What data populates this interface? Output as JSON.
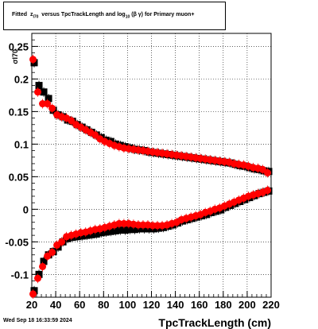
{
  "header": {
    "title_prefix": "Fitted",
    "title_z": "z",
    "title_z_sub": "I70",
    "title_middle": "versus TpcTrackLength and log",
    "title_log_sub": "10",
    "title_beta_gamma": "(β  γ)",
    "title_suffix": "for Primary muon+"
  },
  "footer": {
    "date": "Wed Sep 18 16:33:59 2024"
  },
  "chart_data": {
    "type": "scatter",
    "title": "Fitted zI70 versus TpcTrackLength and log10 (β γ) for Primary muon+",
    "xlabel": "TpcTrackLength (cm)",
    "ylabel": "σI70",
    "xlim": [
      20,
      220
    ],
    "ylim": [
      -0.135,
      0.27
    ],
    "grid": true,
    "x_ticks": [
      20,
      40,
      60,
      80,
      100,
      120,
      140,
      160,
      180,
      200,
      220
    ],
    "y_ticks": [
      -0.1,
      -0.05,
      0,
      0.05,
      0.1,
      0.15,
      0.2,
      0.25
    ],
    "y_tick_labels": [
      "-0.1",
      "-0.05",
      "0",
      "0.05",
      "0.1",
      "0.15",
      "0.2",
      "0.25"
    ],
    "colors": {
      "black": "#000000",
      "red": "#ff0000"
    },
    "series": [
      {
        "color": "black",
        "x": [
          22,
          26,
          30,
          34,
          38,
          42,
          46,
          50,
          54,
          58,
          62,
          66,
          70,
          74,
          78,
          82,
          86,
          90,
          94,
          98,
          102,
          106,
          110,
          114,
          118,
          122,
          126,
          130,
          134,
          138,
          142,
          146,
          150,
          154,
          158,
          162,
          166,
          170,
          174,
          178,
          182,
          186,
          190,
          194,
          198,
          202,
          206,
          210,
          214,
          218
        ],
        "y": [
          0.225,
          0.19,
          0.18,
          0.17,
          0.152,
          0.145,
          0.142,
          0.137,
          0.135,
          0.13,
          0.126,
          0.122,
          0.118,
          0.114,
          0.11,
          0.106,
          0.104,
          0.1,
          0.098,
          0.096,
          0.094,
          0.092,
          0.091,
          0.09,
          0.088,
          0.087,
          0.086,
          0.085,
          0.084,
          0.083,
          0.082,
          0.081,
          0.08,
          0.079,
          0.078,
          0.077,
          0.076,
          0.075,
          0.074,
          0.073,
          0.072,
          0.071,
          0.069,
          0.067,
          0.066,
          0.064,
          0.062,
          0.061,
          0.059,
          0.058
        ]
      },
      {
        "color": "black",
        "x": [
          22,
          26,
          30,
          34,
          38,
          42,
          46,
          50,
          54,
          58,
          62,
          66,
          70,
          74,
          78,
          82,
          86,
          90,
          94,
          98,
          102,
          106,
          110,
          114,
          118,
          122,
          126,
          130,
          134,
          138,
          142,
          146,
          150,
          154,
          158,
          162,
          166,
          170,
          174,
          178,
          182,
          186,
          190,
          194,
          198,
          202,
          206,
          210,
          214,
          218
        ],
        "y": [
          -0.125,
          -0.1,
          -0.08,
          -0.07,
          -0.065,
          -0.058,
          -0.05,
          -0.045,
          -0.043,
          -0.042,
          -0.041,
          -0.04,
          -0.039,
          -0.038,
          -0.036,
          -0.035,
          -0.034,
          -0.033,
          -0.032,
          -0.032,
          -0.031,
          -0.031,
          -0.03,
          -0.03,
          -0.03,
          -0.03,
          -0.029,
          -0.028,
          -0.026,
          -0.024,
          -0.021,
          -0.018,
          -0.016,
          -0.014,
          -0.012,
          -0.01,
          -0.008,
          -0.005,
          -0.003,
          -0.001,
          0.003,
          0.006,
          0.009,
          0.012,
          0.015,
          0.018,
          0.021,
          0.024,
          0.026,
          0.028
        ]
      },
      {
        "color": "red",
        "x": [
          21,
          25,
          29,
          33,
          37,
          41,
          45,
          49,
          53,
          57,
          61,
          65,
          69,
          73,
          77,
          81,
          85,
          89,
          93,
          97,
          101,
          105,
          109,
          113,
          117,
          121,
          125,
          129,
          133,
          137,
          141,
          145,
          149,
          153,
          157,
          161,
          165,
          169,
          173,
          177,
          181,
          185,
          189,
          193,
          197,
          201,
          205,
          209,
          213,
          217
        ],
        "y": [
          0.23,
          0.18,
          0.162,
          0.162,
          0.155,
          0.145,
          0.142,
          0.14,
          0.136,
          0.13,
          0.126,
          0.122,
          0.118,
          0.114,
          0.108,
          0.104,
          0.101,
          0.098,
          0.096,
          0.094,
          0.093,
          0.092,
          0.091,
          0.09,
          0.089,
          0.088,
          0.087,
          0.086,
          0.085,
          0.084,
          0.083,
          0.082,
          0.081,
          0.08,
          0.079,
          0.078,
          0.077,
          0.076,
          0.075,
          0.074,
          0.073,
          0.072,
          0.07,
          0.069,
          0.068,
          0.066,
          0.064,
          0.063,
          0.061,
          0.056
        ]
      },
      {
        "color": "red",
        "x": [
          21,
          25,
          29,
          33,
          37,
          41,
          45,
          49,
          53,
          57,
          61,
          65,
          69,
          73,
          77,
          81,
          85,
          89,
          93,
          97,
          101,
          105,
          109,
          113,
          117,
          121,
          125,
          129,
          133,
          137,
          141,
          145,
          149,
          153,
          157,
          161,
          165,
          169,
          173,
          177,
          181,
          185,
          189,
          193,
          197,
          201,
          205,
          209,
          213,
          217
        ],
        "y": [
          -0.13,
          -0.106,
          -0.088,
          -0.072,
          -0.066,
          -0.055,
          -0.05,
          -0.042,
          -0.04,
          -0.038,
          -0.036,
          -0.035,
          -0.033,
          -0.031,
          -0.03,
          -0.028,
          -0.026,
          -0.024,
          -0.022,
          -0.022,
          -0.022,
          -0.023,
          -0.024,
          -0.024,
          -0.024,
          -0.025,
          -0.025,
          -0.025,
          -0.024,
          -0.022,
          -0.02,
          -0.016,
          -0.014,
          -0.012,
          -0.01,
          -0.008,
          -0.005,
          -0.003,
          0.0,
          0.002,
          0.005,
          0.008,
          0.011,
          0.014,
          0.017,
          0.02,
          0.022,
          0.024,
          0.026,
          0.029
        ]
      }
    ]
  }
}
